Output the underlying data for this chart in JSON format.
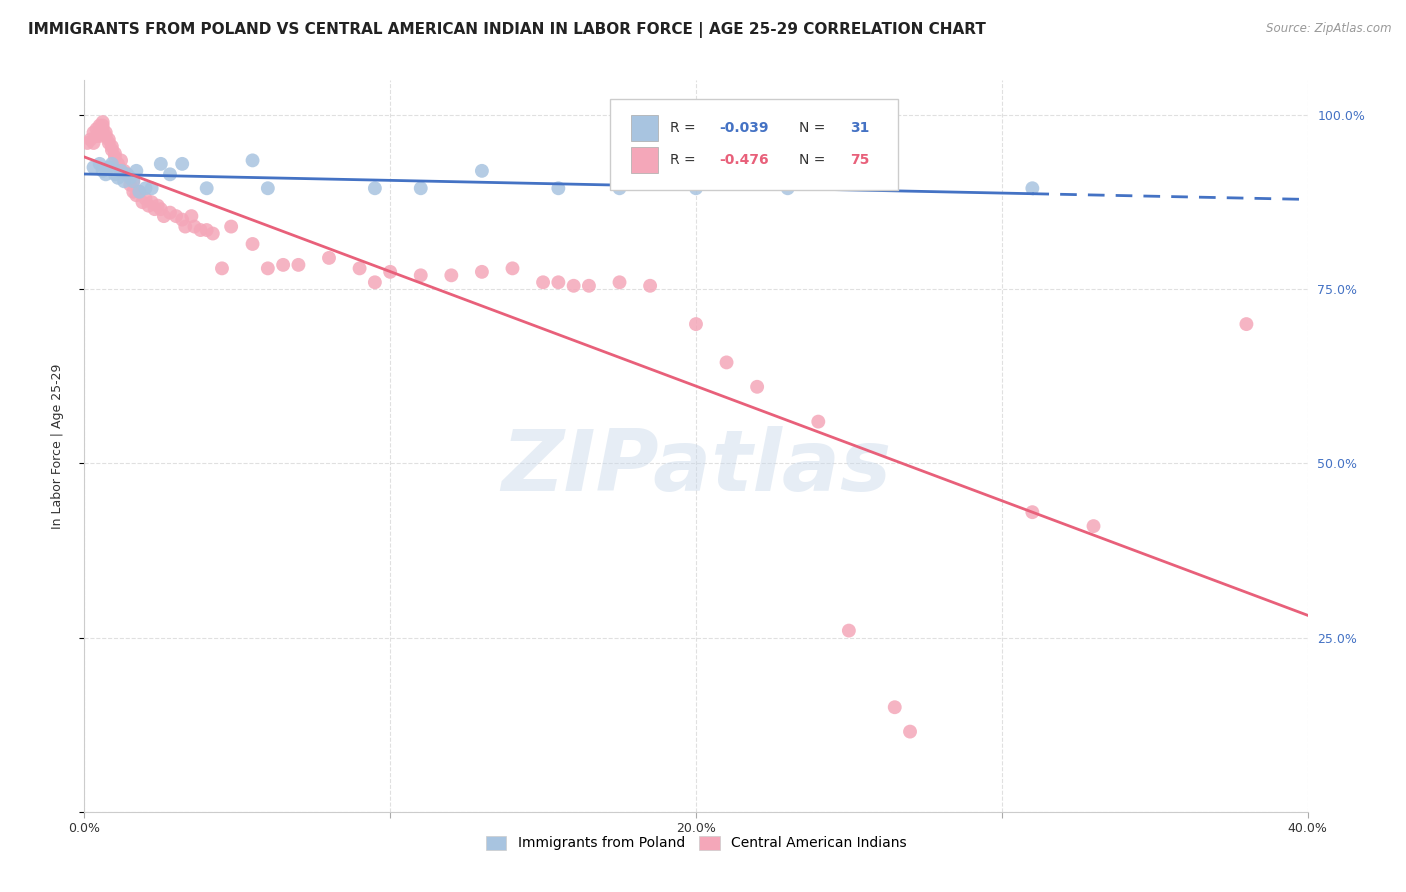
{
  "title": "IMMIGRANTS FROM POLAND VS CENTRAL AMERICAN INDIAN IN LABOR FORCE | AGE 25-29 CORRELATION CHART",
  "source": "Source: ZipAtlas.com",
  "ylabel": "In Labor Force | Age 25-29",
  "xmin": 0.0,
  "xmax": 0.4,
  "ymin": 0.0,
  "ymax": 1.05,
  "yticks": [
    0.0,
    0.25,
    0.5,
    0.75,
    1.0
  ],
  "ytick_labels_right": [
    "",
    "25.0%",
    "50.0%",
    "75.0%",
    "100.0%"
  ],
  "xticks": [
    0.0,
    0.1,
    0.2,
    0.3,
    0.4
  ],
  "xtick_labels": [
    "0.0%",
    "",
    "20.0%",
    "",
    "40.0%"
  ],
  "poland_color": "#a8c4e0",
  "central_color": "#f4a7b9",
  "poland_line_color": "#4472c4",
  "central_line_color": "#e8607a",
  "poland_scatter": [
    [
      0.003,
      0.925
    ],
    [
      0.005,
      0.93
    ],
    [
      0.006,
      0.92
    ],
    [
      0.007,
      0.915
    ],
    [
      0.008,
      0.925
    ],
    [
      0.009,
      0.93
    ],
    [
      0.01,
      0.915
    ],
    [
      0.011,
      0.91
    ],
    [
      0.012,
      0.92
    ],
    [
      0.013,
      0.905
    ],
    [
      0.014,
      0.915
    ],
    [
      0.015,
      0.91
    ],
    [
      0.016,
      0.905
    ],
    [
      0.017,
      0.92
    ],
    [
      0.018,
      0.89
    ],
    [
      0.02,
      0.895
    ],
    [
      0.022,
      0.895
    ],
    [
      0.025,
      0.93
    ],
    [
      0.028,
      0.915
    ],
    [
      0.032,
      0.93
    ],
    [
      0.04,
      0.895
    ],
    [
      0.055,
      0.935
    ],
    [
      0.06,
      0.895
    ],
    [
      0.095,
      0.895
    ],
    [
      0.11,
      0.895
    ],
    [
      0.13,
      0.92
    ],
    [
      0.155,
      0.895
    ],
    [
      0.175,
      0.895
    ],
    [
      0.2,
      0.895
    ],
    [
      0.23,
      0.895
    ],
    [
      0.31,
      0.895
    ]
  ],
  "central_scatter": [
    [
      0.001,
      0.96
    ],
    [
      0.002,
      0.965
    ],
    [
      0.003,
      0.96
    ],
    [
      0.003,
      0.975
    ],
    [
      0.004,
      0.97
    ],
    [
      0.004,
      0.98
    ],
    [
      0.005,
      0.97
    ],
    [
      0.005,
      0.975
    ],
    [
      0.005,
      0.985
    ],
    [
      0.006,
      0.98
    ],
    [
      0.006,
      0.985
    ],
    [
      0.006,
      0.99
    ],
    [
      0.007,
      0.97
    ],
    [
      0.007,
      0.975
    ],
    [
      0.008,
      0.96
    ],
    [
      0.008,
      0.965
    ],
    [
      0.009,
      0.95
    ],
    [
      0.009,
      0.955
    ],
    [
      0.01,
      0.94
    ],
    [
      0.01,
      0.945
    ],
    [
      0.011,
      0.93
    ],
    [
      0.012,
      0.92
    ],
    [
      0.012,
      0.935
    ],
    [
      0.013,
      0.92
    ],
    [
      0.014,
      0.915
    ],
    [
      0.015,
      0.9
    ],
    [
      0.016,
      0.905
    ],
    [
      0.016,
      0.89
    ],
    [
      0.017,
      0.885
    ],
    [
      0.018,
      0.89
    ],
    [
      0.019,
      0.875
    ],
    [
      0.02,
      0.88
    ],
    [
      0.021,
      0.87
    ],
    [
      0.022,
      0.875
    ],
    [
      0.023,
      0.865
    ],
    [
      0.024,
      0.87
    ],
    [
      0.025,
      0.865
    ],
    [
      0.026,
      0.855
    ],
    [
      0.028,
      0.86
    ],
    [
      0.03,
      0.855
    ],
    [
      0.032,
      0.85
    ],
    [
      0.033,
      0.84
    ],
    [
      0.035,
      0.855
    ],
    [
      0.036,
      0.84
    ],
    [
      0.038,
      0.835
    ],
    [
      0.04,
      0.835
    ],
    [
      0.042,
      0.83
    ],
    [
      0.045,
      0.78
    ],
    [
      0.048,
      0.84
    ],
    [
      0.055,
      0.815
    ],
    [
      0.06,
      0.78
    ],
    [
      0.065,
      0.785
    ],
    [
      0.07,
      0.785
    ],
    [
      0.08,
      0.795
    ],
    [
      0.09,
      0.78
    ],
    [
      0.095,
      0.76
    ],
    [
      0.1,
      0.775
    ],
    [
      0.11,
      0.77
    ],
    [
      0.12,
      0.77
    ],
    [
      0.13,
      0.775
    ],
    [
      0.14,
      0.78
    ],
    [
      0.15,
      0.76
    ],
    [
      0.155,
      0.76
    ],
    [
      0.16,
      0.755
    ],
    [
      0.165,
      0.755
    ],
    [
      0.175,
      0.76
    ],
    [
      0.185,
      0.755
    ],
    [
      0.2,
      0.7
    ],
    [
      0.21,
      0.645
    ],
    [
      0.22,
      0.61
    ],
    [
      0.24,
      0.56
    ],
    [
      0.25,
      0.26
    ],
    [
      0.265,
      0.15
    ],
    [
      0.27,
      0.115
    ],
    [
      0.31,
      0.43
    ],
    [
      0.33,
      0.41
    ],
    [
      0.38,
      0.7
    ]
  ],
  "background_color": "#ffffff",
  "grid_color": "#dddddd",
  "title_fontsize": 11,
  "axis_fontsize": 9,
  "tick_fontsize": 9,
  "watermark_text": "ZIPatlas",
  "watermark_color": "#c8d8ea",
  "watermark_alpha": 0.45
}
